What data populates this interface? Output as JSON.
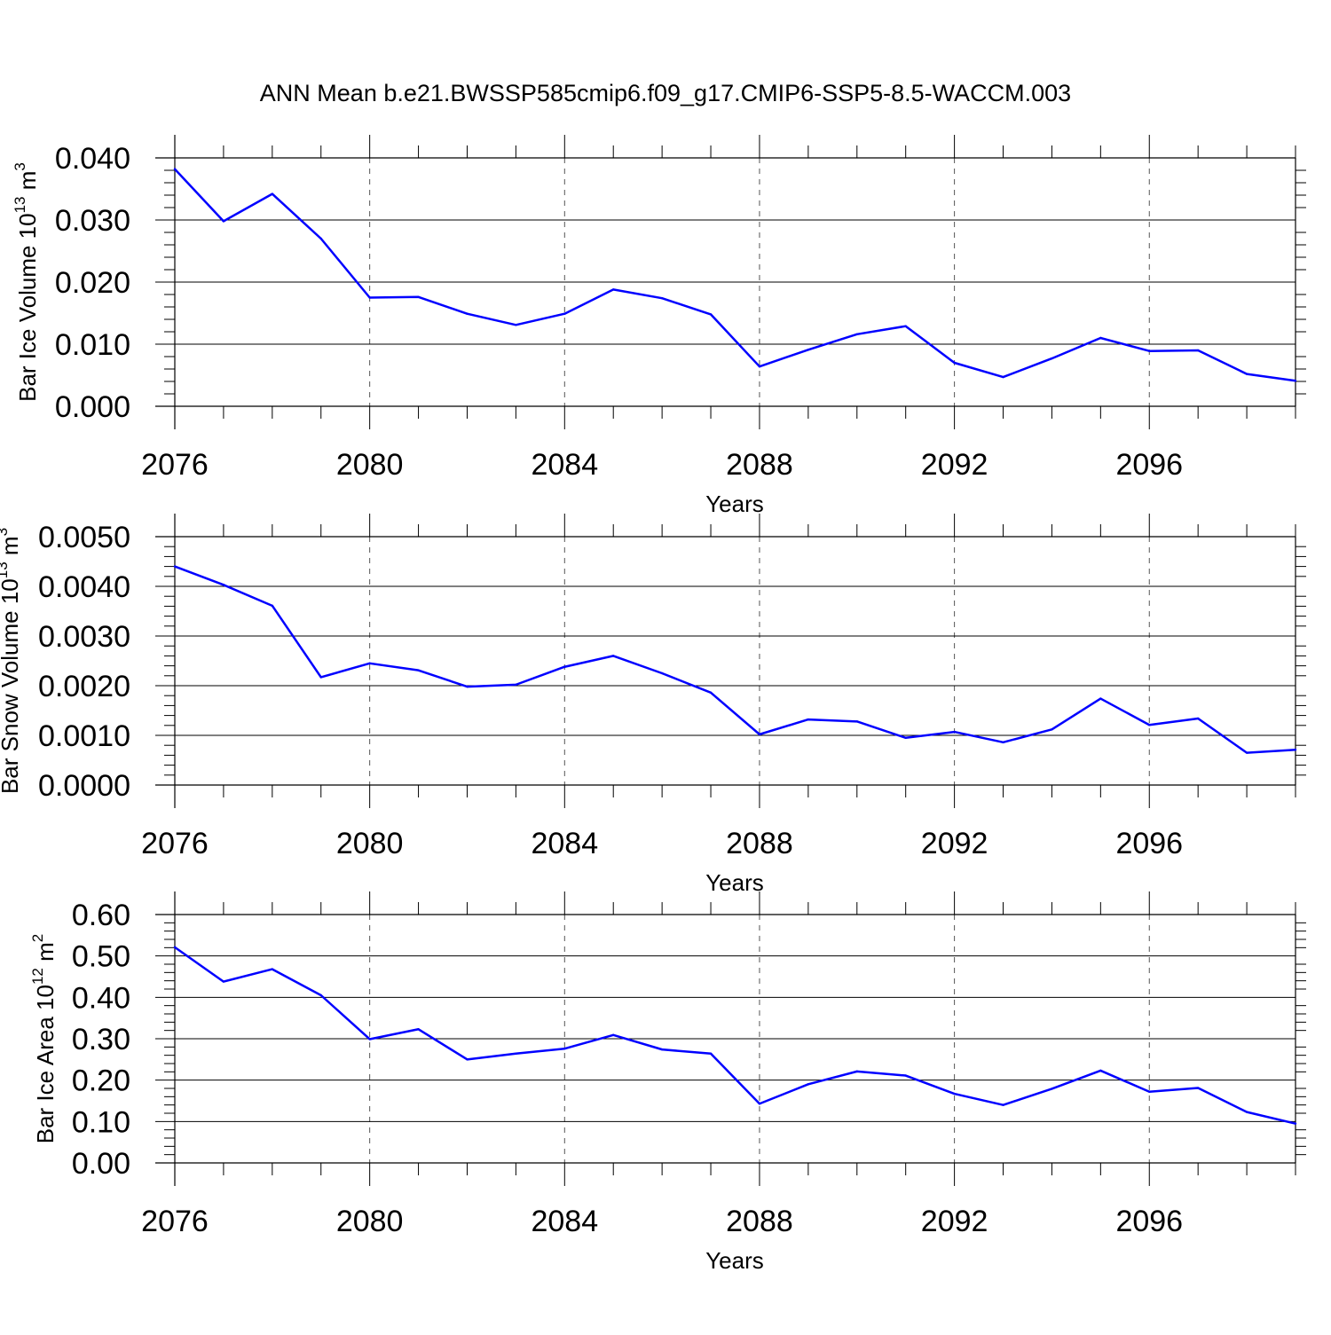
{
  "title": "ANN Mean b.e21.BWSSP585cmip6.f09_g17.CMIP6-SSP5-8.5-WACCM.003",
  "colors": {
    "line": "#0000ff",
    "axis": "#000000",
    "grid": "#555555"
  },
  "chart_data": [
    {
      "type": "line",
      "title": "",
      "xlabel": "Years",
      "ylabel": {
        "prefix": "Bar Ice Volume 10",
        "exponent": "13",
        "unit": " m",
        "unit_exponent": "3"
      },
      "xlim": [
        2076,
        2099
      ],
      "ylim": [
        0,
        0.04
      ],
      "xticks": [
        2076,
        2080,
        2084,
        2088,
        2092,
        2096
      ],
      "xtick_labels": [
        "2076",
        "2080",
        "2084",
        "2088",
        "2092",
        "2096"
      ],
      "yticks": [
        0,
        0.01,
        0.02,
        0.03,
        0.04
      ],
      "ytick_labels": [
        "0.000",
        "0.010",
        "0.020",
        "0.030",
        "0.040"
      ],
      "grid": "vertical dashed at major x ticks",
      "x": [
        2076,
        2077,
        2078,
        2079,
        2080,
        2081,
        2082,
        2083,
        2084,
        2085,
        2086,
        2087,
        2088,
        2089,
        2090,
        2091,
        2092,
        2093,
        2094,
        2095,
        2096,
        2097,
        2098,
        2099
      ],
      "series": [
        {
          "values": [
            0.0382,
            0.0298,
            0.0342,
            0.027,
            0.0175,
            0.0176,
            0.0149,
            0.0131,
            0.0149,
            0.0188,
            0.0174,
            0.0148,
            0.0064,
            0.0091,
            0.0116,
            0.0129,
            0.007,
            0.0047,
            0.0077,
            0.011,
            0.0089,
            0.009,
            0.0052,
            0.0041
          ]
        }
      ]
    },
    {
      "type": "line",
      "title": "",
      "xlabel": "Years",
      "ylabel": {
        "prefix": "Bar Snow Volume 10",
        "exponent": "13",
        "unit": " m",
        "unit_exponent": "3"
      },
      "xlim": [
        2076,
        2099
      ],
      "ylim": [
        0,
        0.005
      ],
      "xticks": [
        2076,
        2080,
        2084,
        2088,
        2092,
        2096
      ],
      "xtick_labels": [
        "2076",
        "2080",
        "2084",
        "2088",
        "2092",
        "2096"
      ],
      "yticks": [
        0,
        0.001,
        0.002,
        0.003,
        0.004,
        0.005
      ],
      "ytick_labels": [
        "0.0000",
        "0.0010",
        "0.0020",
        "0.0030",
        "0.0040",
        "0.0050"
      ],
      "grid": "vertical dashed at major x ticks",
      "x": [
        2076,
        2077,
        2078,
        2079,
        2080,
        2081,
        2082,
        2083,
        2084,
        2085,
        2086,
        2087,
        2088,
        2089,
        2090,
        2091,
        2092,
        2093,
        2094,
        2095,
        2096,
        2097,
        2098,
        2099
      ],
      "series": [
        {
          "values": [
            0.0044,
            0.00403,
            0.00361,
            0.00217,
            0.00245,
            0.00231,
            0.00198,
            0.00202,
            0.00238,
            0.0026,
            0.00225,
            0.00186,
            0.00102,
            0.00132,
            0.00128,
            0.00095,
            0.00107,
            0.00086,
            0.00112,
            0.00174,
            0.00121,
            0.00134,
            0.00065,
            0.00071
          ]
        }
      ]
    },
    {
      "type": "line",
      "title": "",
      "xlabel": "Years",
      "ylabel": {
        "prefix": "Bar Ice Area 10",
        "exponent": "12",
        "unit": " m",
        "unit_exponent": "2"
      },
      "xlim": [
        2076,
        2099
      ],
      "ylim": [
        0,
        0.6
      ],
      "xticks": [
        2076,
        2080,
        2084,
        2088,
        2092,
        2096
      ],
      "xtick_labels": [
        "2076",
        "2080",
        "2084",
        "2088",
        "2092",
        "2096"
      ],
      "yticks": [
        0,
        0.1,
        0.2,
        0.3,
        0.4,
        0.5,
        0.6
      ],
      "ytick_labels": [
        "0.00",
        "0.10",
        "0.20",
        "0.30",
        "0.40",
        "0.50",
        "0.60"
      ],
      "grid": "vertical dashed at major x ticks",
      "x": [
        2076,
        2077,
        2078,
        2079,
        2080,
        2081,
        2082,
        2083,
        2084,
        2085,
        2086,
        2087,
        2088,
        2089,
        2090,
        2091,
        2092,
        2093,
        2094,
        2095,
        2096,
        2097,
        2098,
        2099
      ],
      "series": [
        {
          "values": [
            0.521,
            0.438,
            0.468,
            0.405,
            0.299,
            0.323,
            0.25,
            0.264,
            0.276,
            0.309,
            0.274,
            0.264,
            0.143,
            0.19,
            0.221,
            0.211,
            0.167,
            0.14,
            0.179,
            0.223,
            0.172,
            0.181,
            0.123,
            0.095
          ]
        }
      ]
    }
  ]
}
